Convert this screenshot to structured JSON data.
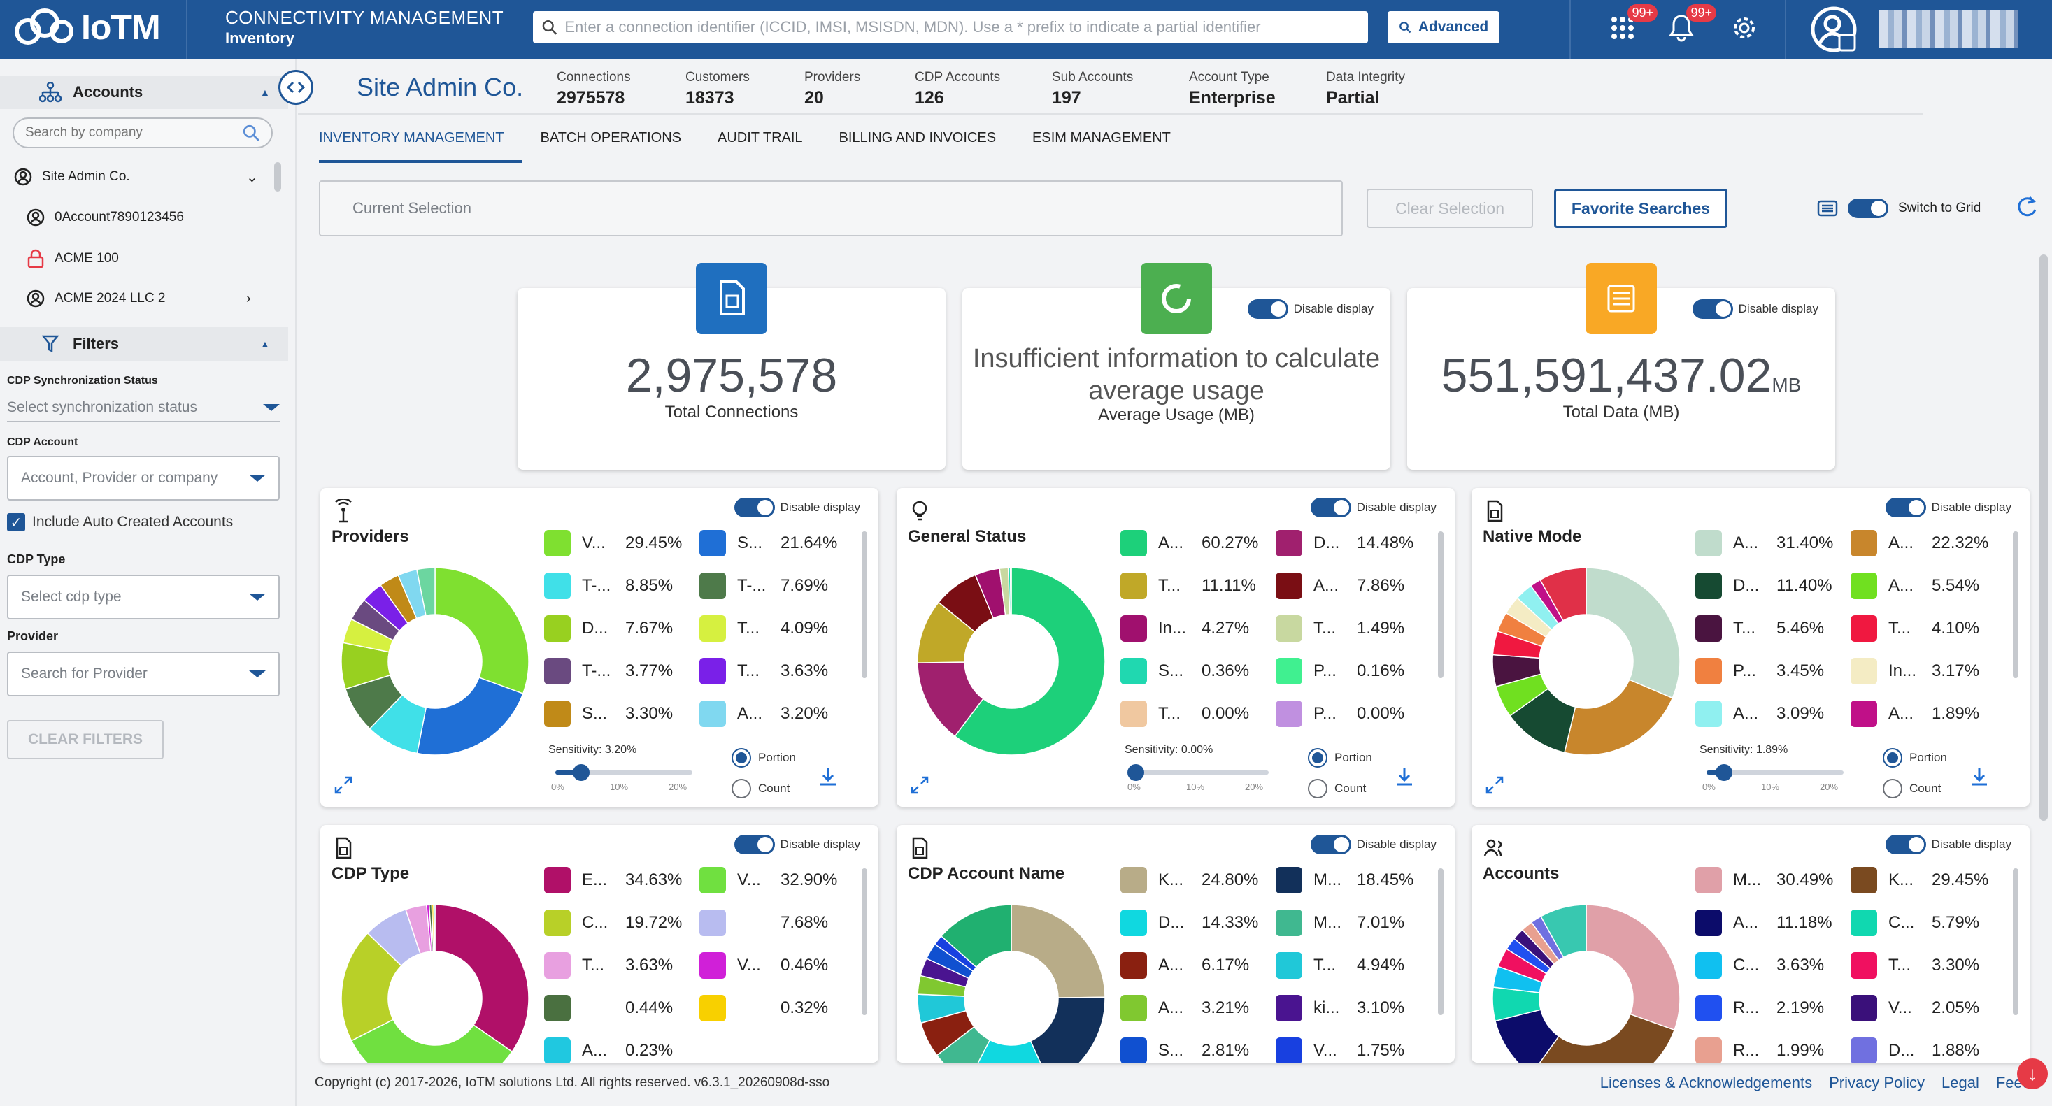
{
  "header": {
    "logo_text": "IoTM",
    "app_title": "CONNECTIVITY MANAGEMENT",
    "app_subtitle": "Inventory",
    "search_placeholder": "Enter a connection identifier (ICCID, IMSI, MSISDN, MDN). Use a * prefix to indicate a partial identifier",
    "advanced_label": "Advanced",
    "apps_badge": "99+",
    "notif_badge": "99+",
    "icons": [
      "apps-grid-icon",
      "bell-icon",
      "gear-icon",
      "user-avatar-icon"
    ]
  },
  "sidebar": {
    "accounts_label": "Accounts",
    "search_placeholder": "Search by company",
    "accounts": [
      {
        "label": "Site Admin Co.",
        "icon": "user-circle-icon",
        "arrow": "down"
      },
      {
        "label": "0Account7890123456",
        "icon": "user-circle-icon",
        "arrow": ""
      },
      {
        "label": "ACME 100",
        "icon": "lock-icon",
        "arrow": ""
      },
      {
        "label": "ACME 2024 LLC 2",
        "icon": "user-circle-icon",
        "arrow": "right"
      }
    ],
    "filters_label": "Filters",
    "cdp_sync_label": "CDP Synchronization Status",
    "cdp_sync_placeholder": "Select synchronization status",
    "cdp_account_label": "CDP Account",
    "cdp_account_placeholder": "Account, Provider or company",
    "include_auto_label": "Include Auto Created Accounts",
    "cdp_type_label": "CDP Type",
    "cdp_type_placeholder": "Select cdp type",
    "provider_label": "Provider",
    "provider_placeholder": "Search for Provider",
    "clear_filters_label": "CLEAR FILTERS"
  },
  "company": {
    "name": "Site Admin Co.",
    "stats": [
      {
        "label": "Connections",
        "value": "2975578"
      },
      {
        "label": "Customers",
        "value": "18373"
      },
      {
        "label": "Providers",
        "value": "20"
      },
      {
        "label": "CDP Accounts",
        "value": "126"
      },
      {
        "label": "Sub Accounts",
        "value": "197"
      },
      {
        "label": "Account Type",
        "value": "Enterprise"
      },
      {
        "label": "Data Integrity",
        "value": "Partial"
      }
    ]
  },
  "tabs": [
    "INVENTORY MANAGEMENT",
    "BATCH OPERATIONS",
    "AUDIT TRAIL",
    "BILLING AND INVOICES",
    "ESIM MANAGEMENT"
  ],
  "selection": {
    "current_placeholder": "Current Selection",
    "clear_label": "Clear Selection",
    "favorite_label": "Favorite Searches",
    "switch_label": "Switch to Grid"
  },
  "kpis": [
    {
      "value": "2,975,578",
      "unit": "",
      "label": "Total Connections",
      "color": "#1f6fbf",
      "icon": "sim-card-icon",
      "toggle": ""
    },
    {
      "value": "",
      "message": "Insufficient information to calculate average usage",
      "unit": "",
      "label": "Average Usage (MB)",
      "color": "#4caf50",
      "icon": "donut-chart-icon",
      "toggle": "Disable display"
    },
    {
      "value": "551,591,437.02",
      "unit": "MB",
      "label": "Total Data (MB)",
      "color": "#f9a825",
      "icon": "database-icon",
      "toggle": "Disable display"
    }
  ],
  "chart_data": [
    {
      "type": "pie",
      "title": "Providers",
      "icon": "antenna-icon",
      "toggle": "Disable display",
      "legend": [
        [
          "V...",
          29.45,
          "#7fe030"
        ],
        [
          "S...",
          21.64,
          "#1f6fd6"
        ],
        [
          "T-...",
          8.85,
          "#40e0e8"
        ],
        [
          "T-...",
          7.69,
          "#4e7a4a"
        ],
        [
          "D...",
          7.67,
          "#98d020"
        ],
        [
          "T...",
          4.09,
          "#d6f040"
        ],
        [
          "T-...",
          3.77,
          "#6a4a80"
        ],
        [
          "T...",
          3.63,
          "#7a20e8"
        ],
        [
          "S...",
          3.3,
          "#c08a18"
        ],
        [
          "A...",
          3.2,
          "#80d8f0"
        ]
      ],
      "others": [
        [
          "",
          3.0,
          "#6cd6a0"
        ]
      ],
      "sensitivity": "Sensitivity: 3.20%",
      "sens_value": 3.2,
      "ticks": [
        "0%",
        "10%",
        "20%"
      ],
      "radio": [
        "Portion",
        "Count"
      ]
    },
    {
      "type": "pie",
      "title": "General Status",
      "icon": "lightbulb-icon",
      "toggle": "Disable display",
      "legend": [
        [
          "A...",
          60.27,
          "#1dd07a"
        ],
        [
          "D...",
          14.48,
          "#a0206e"
        ],
        [
          "T...",
          11.11,
          "#c0a828"
        ],
        [
          "A...",
          7.86,
          "#7a0e14"
        ],
        [
          "In...",
          4.27,
          "#a0106e"
        ],
        [
          "T...",
          1.49,
          "#c8d8a0"
        ],
        [
          "S...",
          0.36,
          "#20d8b0"
        ],
        [
          "P...",
          0.16,
          "#40f090"
        ],
        [
          "T...",
          0.0,
          "#f0c8a0"
        ],
        [
          "P...",
          0.0,
          "#c090e0"
        ]
      ],
      "others": [],
      "sensitivity": "Sensitivity: 0.00%",
      "sens_value": 0.0,
      "ticks": [
        "0%",
        "10%",
        "20%"
      ],
      "radio": [
        "Portion",
        "Count"
      ]
    },
    {
      "type": "pie",
      "title": "Native Mode",
      "icon": "sim-card-icon",
      "toggle": "Disable display",
      "legend": [
        [
          "A...",
          31.4,
          "#c0dccc"
        ],
        [
          "A...",
          22.32,
          "#c8862c"
        ],
        [
          "D...",
          11.4,
          "#164a32"
        ],
        [
          "A...",
          5.54,
          "#70e020"
        ],
        [
          "T...",
          5.46,
          "#4a1440"
        ],
        [
          "T...",
          4.1,
          "#f01840"
        ],
        [
          "P...",
          3.45,
          "#f08040"
        ],
        [
          "In...",
          3.17,
          "#f4ecc4"
        ],
        [
          "A...",
          3.09,
          "#90f0f0"
        ],
        [
          "A...",
          1.89,
          "#c01088"
        ]
      ],
      "others": [
        [
          "",
          8.18,
          "#e03048"
        ]
      ],
      "sensitivity": "Sensitivity: 1.89%",
      "sens_value": 1.89,
      "ticks": [
        "0%",
        "10%",
        "20%"
      ],
      "radio": [
        "Portion",
        "Count"
      ]
    },
    {
      "type": "pie",
      "title": "CDP Type",
      "icon": "sim-card-icon",
      "toggle": "Disable display",
      "legend": [
        [
          "E...",
          34.63,
          "#b01068"
        ],
        [
          "V...",
          32.9,
          "#70e040"
        ],
        [
          "C...",
          19.72,
          "#b8d028"
        ],
        [
          "",
          7.68,
          "#b8bcf0"
        ],
        [
          "T...",
          3.63,
          "#e8a0e0"
        ],
        [
          "V...",
          0.46,
          "#d020d8"
        ],
        [
          "",
          0.44,
          "#4a7040"
        ],
        [
          "",
          0.32,
          "#f8d000"
        ],
        [
          "A...",
          0.23,
          "#20c8e0"
        ]
      ],
      "others": [],
      "sensitivity": "",
      "sens_value": 0,
      "ticks": [],
      "radio": []
    },
    {
      "type": "pie",
      "title": "CDP Account Name",
      "icon": "sim-card-icon",
      "toggle": "Disable display",
      "legend": [
        [
          "K...",
          24.8,
          "#b8ac88"
        ],
        [
          "M...",
          18.45,
          "#12305a"
        ],
        [
          "D...",
          14.33,
          "#10d8e0"
        ],
        [
          "M...",
          7.01,
          "#40b890"
        ],
        [
          "A...",
          6.17,
          "#8a2010"
        ],
        [
          "T...",
          4.94,
          "#20c8d8"
        ],
        [
          "A...",
          3.21,
          "#80c830"
        ],
        [
          "ki...",
          3.1,
          "#4a1490"
        ],
        [
          "S...",
          2.81,
          "#1050d0"
        ],
        [
          "V...",
          1.75,
          "#1840e0"
        ]
      ],
      "others": [
        [
          "",
          13.43,
          "#20b070"
        ]
      ],
      "sensitivity": "",
      "sens_value": 0,
      "ticks": [],
      "radio": []
    },
    {
      "type": "pie",
      "title": "Accounts",
      "icon": "users-icon",
      "toggle": "Disable display",
      "legend": [
        [
          "M...",
          30.49,
          "#e0a0a8"
        ],
        [
          "K...",
          29.45,
          "#7a4a20"
        ],
        [
          "A...",
          11.18,
          "#0c0c6a"
        ],
        [
          "C...",
          5.79,
          "#10d8b0"
        ],
        [
          "C...",
          3.63,
          "#10c0f0"
        ],
        [
          "T...",
          3.3,
          "#f01060"
        ],
        [
          "R...",
          2.19,
          "#2050f0"
        ],
        [
          "V...",
          2.05,
          "#3a107a"
        ],
        [
          "R...",
          1.99,
          "#e8a090"
        ],
        [
          "D...",
          1.88,
          "#7070e0"
        ]
      ],
      "others": [
        [
          "",
          8.05,
          "#38c8b0"
        ]
      ],
      "sensitivity": "",
      "sens_value": 0,
      "ticks": [],
      "radio": []
    }
  ],
  "footer": {
    "copyright": "Copyright (c) 2017-2026, IoTM solutions Ltd. All rights reserved. v6.3.1_20260908d-sso",
    "links": [
      "Licenses & Acknowledgements",
      "Privacy Policy",
      "Legal",
      "Feed"
    ]
  }
}
